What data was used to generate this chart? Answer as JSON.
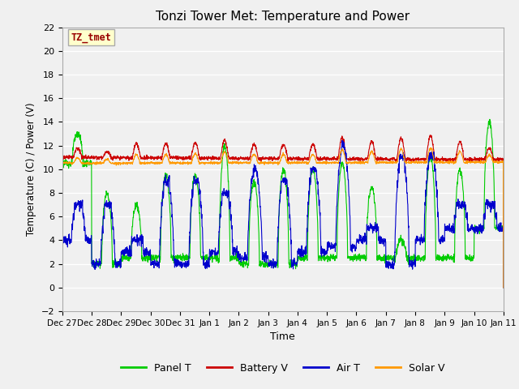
{
  "title": "Tonzi Tower Met: Temperature and Power",
  "xlabel": "Time",
  "ylabel": "Temperature (C) / Power (V)",
  "ylim": [
    -2,
    22
  ],
  "yticks": [
    -2,
    0,
    2,
    4,
    6,
    8,
    10,
    12,
    14,
    16,
    18,
    20,
    22
  ],
  "bg_color": "#e8e8e8",
  "plot_bg_color": "#e8e8e8",
  "annotation_text": "TZ_tmet",
  "annotation_box_color": "#ffffcc",
  "annotation_border_color": "#aaaaaa",
  "annotation_text_color": "#990000",
  "colors": {
    "Panel T": "#00cc00",
    "Battery V": "#cc0000",
    "Air T": "#0000cc",
    "Solar V": "#ff9900"
  },
  "tick_dates": [
    "Dec 27",
    "Dec 28",
    "Dec 29",
    "Dec 30",
    "Dec 31",
    "Jan 1",
    "Jan 2",
    "Jan 3",
    "Jan 4",
    "Jan 5",
    "Jan 6",
    "Jan 7",
    "Jan 8",
    "Jan 9",
    "Jan 10",
    "Jan 11"
  ]
}
